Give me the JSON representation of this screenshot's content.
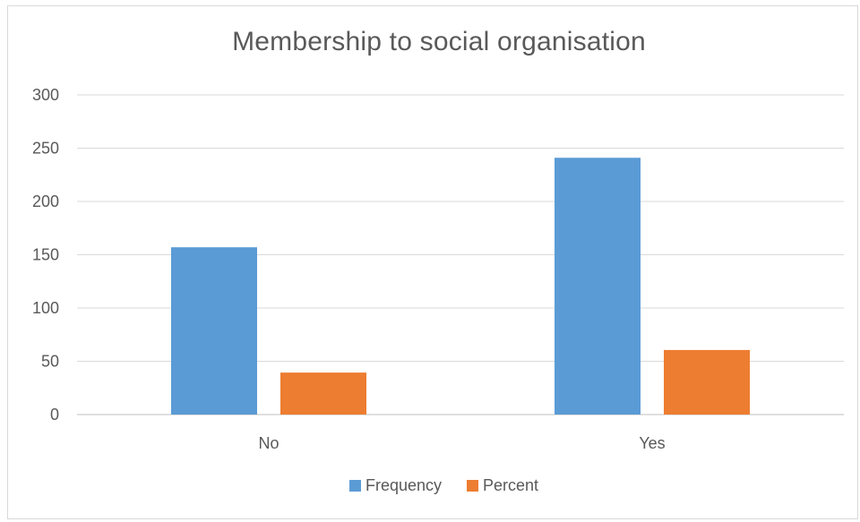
{
  "chart_data": {
    "type": "bar",
    "title": "Membership to social organisation",
    "xlabel": "",
    "ylabel": "",
    "categories": [
      "No",
      "Yes"
    ],
    "series": [
      {
        "name": "Frequency",
        "values": [
          157,
          241
        ],
        "color": "#5b9bd5"
      },
      {
        "name": "Percent",
        "values": [
          39.4,
          60.6
        ],
        "color": "#ed7d31"
      }
    ],
    "ylim": [
      0,
      300
    ],
    "yticks": [
      0,
      50,
      100,
      150,
      200,
      250,
      300
    ],
    "grid": true,
    "legend_position": "bottom"
  }
}
